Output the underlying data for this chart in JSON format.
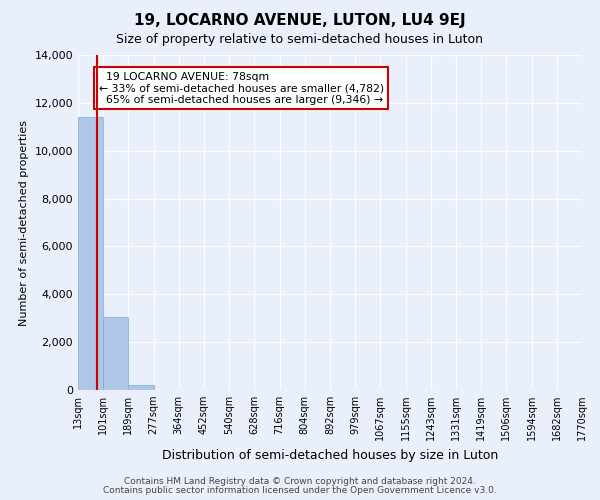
{
  "title": "19, LOCARNO AVENUE, LUTON, LU4 9EJ",
  "subtitle": "Size of property relative to semi-detached houses in Luton",
  "xlabel": "Distribution of semi-detached houses by size in Luton",
  "ylabel": "Number of semi-detached properties",
  "bin_labels": [
    "13sqm",
    "101sqm",
    "189sqm",
    "277sqm",
    "364sqm",
    "452sqm",
    "540sqm",
    "628sqm",
    "716sqm",
    "804sqm",
    "892sqm",
    "979sqm",
    "1067sqm",
    "1155sqm",
    "1243sqm",
    "1331sqm",
    "1419sqm",
    "1506sqm",
    "1594sqm",
    "1682sqm",
    "1770sqm"
  ],
  "bar_values": [
    11400,
    3050,
    200,
    0,
    0,
    0,
    0,
    0,
    0,
    0,
    0,
    0,
    0,
    0,
    0,
    0,
    0,
    0,
    0,
    0
  ],
  "n_bins": 20,
  "property_bin": 0.75,
  "property_label": "19 LOCARNO AVENUE: 78sqm",
  "pct_smaller": 33,
  "count_smaller": 4782,
  "pct_larger": 65,
  "count_larger": 9346,
  "bar_color": "#aec6e8",
  "bar_edge_color": "#7bafd4",
  "vline_color": "#cc0000",
  "annotation_box_edge_color": "#cc0000",
  "ylim": [
    0,
    14000
  ],
  "yticks": [
    0,
    2000,
    4000,
    6000,
    8000,
    10000,
    12000,
    14000
  ],
  "background_color": "#eaf0fb",
  "grid_color": "#ffffff",
  "title_fontsize": 11,
  "subtitle_fontsize": 9,
  "footer_line1": "Contains HM Land Registry data © Crown copyright and database right 2024.",
  "footer_line2": "Contains public sector information licensed under the Open Government Licence v3.0."
}
